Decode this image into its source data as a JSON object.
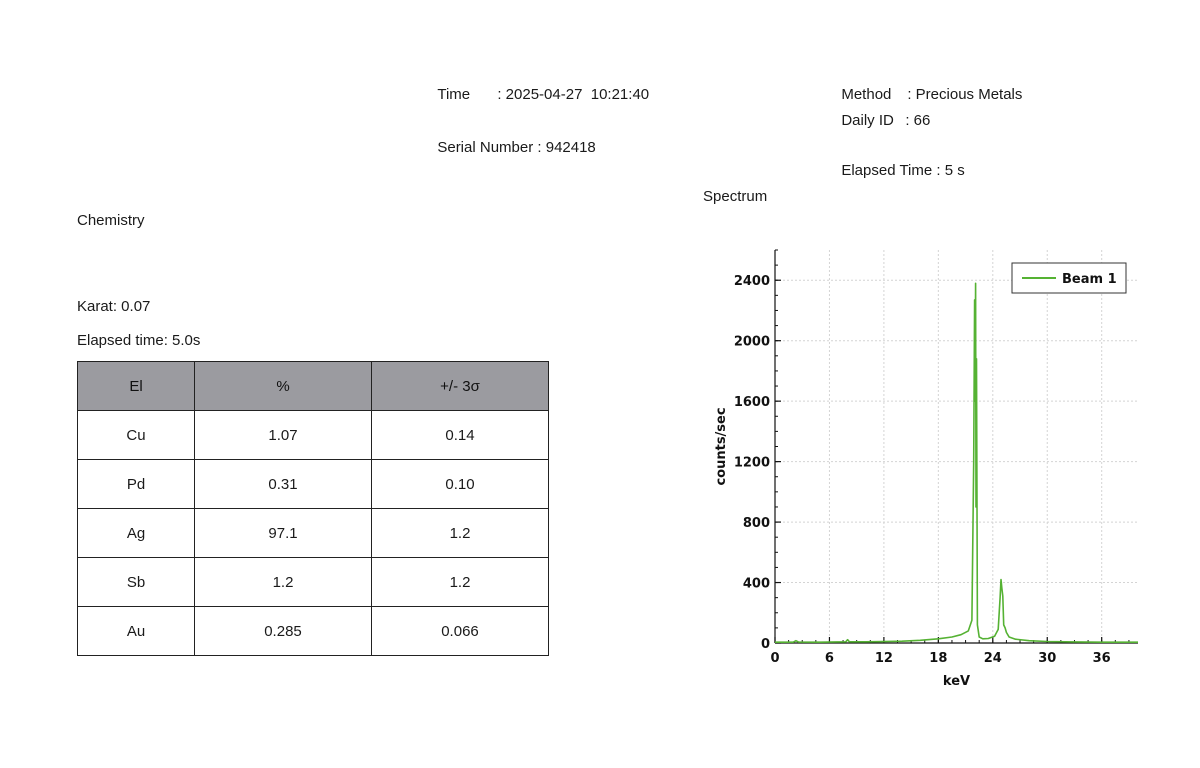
{
  "header": {
    "time_label": "Time",
    "time_value": ": 2025-04-27  10:21:40",
    "serial_label": "Serial Number",
    "serial_value": ": 942418",
    "method_label": "Method",
    "method_value": ": Precious Metals",
    "daily_id_label": "Daily ID",
    "daily_id_value": ": 66",
    "elapsed_label": "Elapsed Time",
    "elapsed_value": ": 5 s"
  },
  "chemistry": {
    "title": "Chemistry",
    "karat": "Karat: 0.07",
    "elapsed": "Elapsed time: 5.0s",
    "columns": [
      "El",
      "%",
      "+/- 3σ"
    ],
    "rows": [
      [
        "Cu",
        "1.07",
        "0.14"
      ],
      [
        "Pd",
        "0.31",
        "0.10"
      ],
      [
        "Ag",
        "97.1",
        "1.2"
      ],
      [
        "Sb",
        "1.2",
        "1.2"
      ],
      [
        "Au",
        "0.285",
        "0.066"
      ]
    ]
  },
  "spectrum": {
    "title": "Spectrum",
    "color": "#55b233"
  },
  "chart_data": {
    "type": "line",
    "xlabel": "keV",
    "ylabel": "counts/sec",
    "xlim": [
      0,
      40
    ],
    "ylim": [
      0,
      2600
    ],
    "xticks": [
      0,
      6,
      12,
      18,
      24,
      30,
      36
    ],
    "yticks": [
      0,
      400,
      800,
      1200,
      1600,
      2000,
      2400
    ],
    "grid": true,
    "legend": "top-right",
    "series": [
      {
        "name": "Beam 1",
        "x": [
          0,
          2,
          2.3,
          2.6,
          5,
          7.8,
          8.0,
          8.2,
          10,
          14,
          16,
          18,
          19.5,
          20.5,
          21.3,
          21.7,
          21.9,
          22.0,
          22.05,
          22.1,
          22.15,
          22.2,
          22.3,
          22.5,
          22.9,
          23.5,
          24.2,
          24.6,
          24.8,
          24.9,
          25.0,
          25.1,
          25.2,
          25.35,
          25.5,
          25.8,
          26.5,
          28,
          30,
          33,
          36,
          40
        ],
        "y": [
          5,
          5,
          15,
          6,
          5,
          8,
          22,
          8,
          8,
          12,
          18,
          28,
          40,
          55,
          80,
          150,
          1200,
          2270,
          1600,
          2380,
          900,
          1880,
          120,
          40,
          28,
          30,
          45,
          90,
          300,
          420,
          360,
          310,
          120,
          100,
          70,
          40,
          25,
          15,
          10,
          7,
          5,
          5
        ]
      }
    ]
  }
}
